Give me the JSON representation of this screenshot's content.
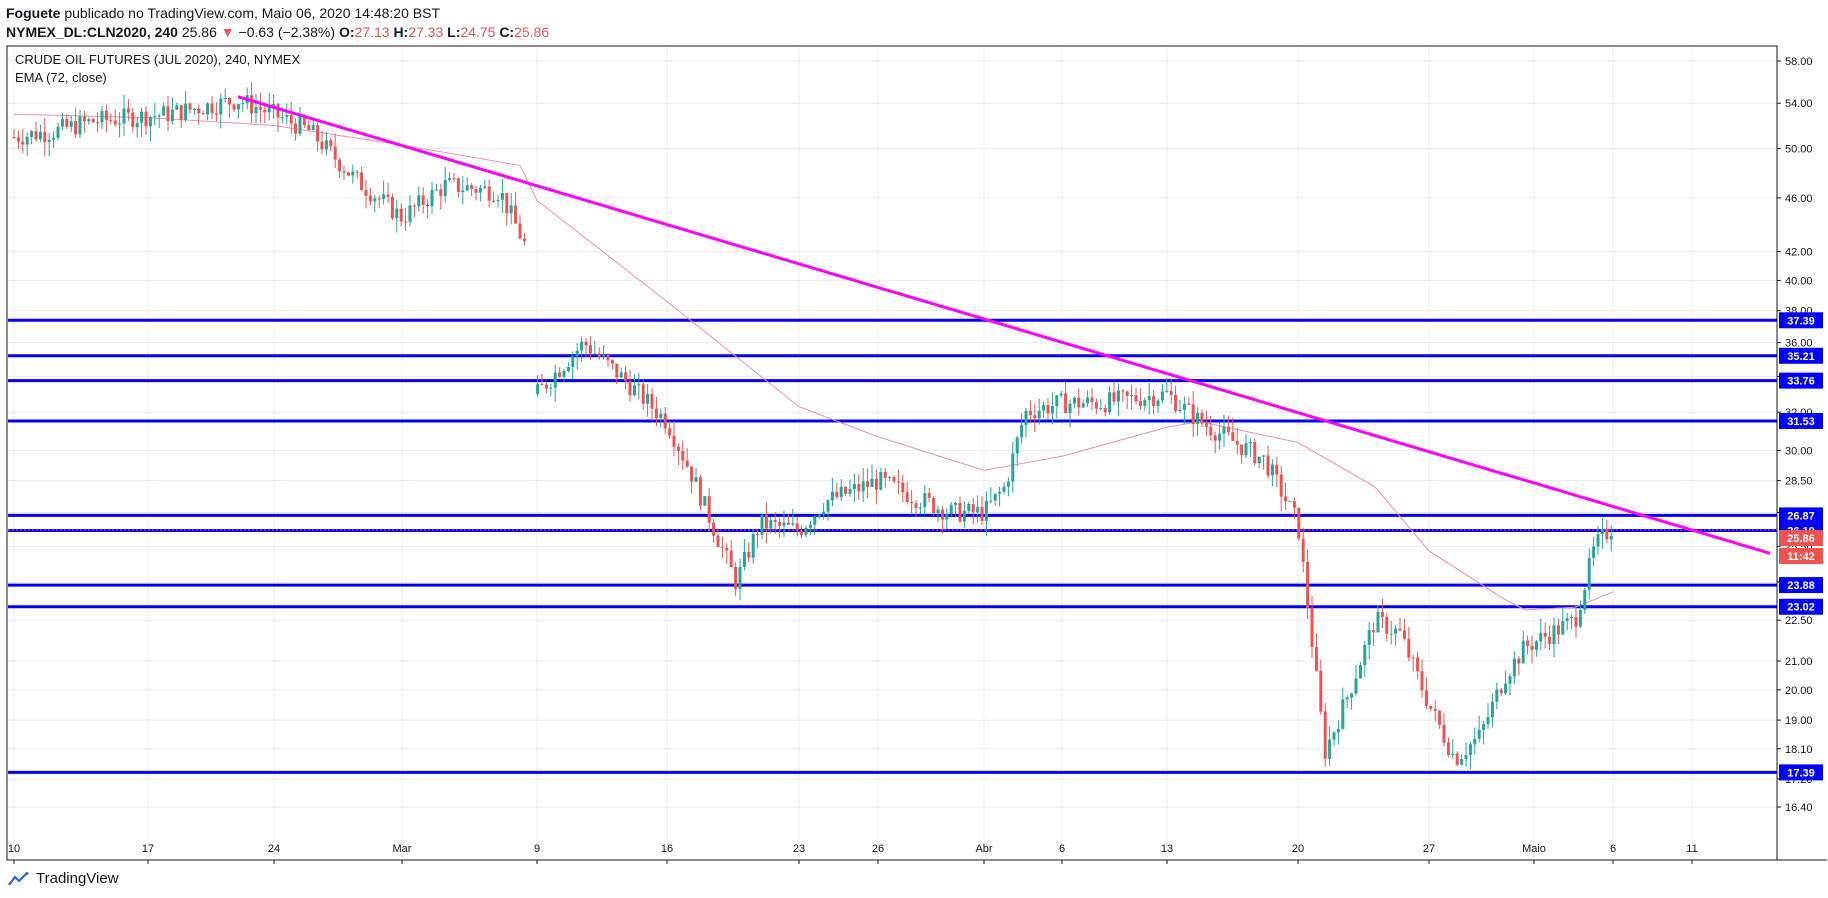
{
  "header": {
    "line1_author": "Foguete",
    "line1_rest": "publicado no TradingView.com, Maio 06, 2020 14:48:20 BST",
    "symbol": "NYMEX_DL:CLN2020, 240",
    "last": "25.86",
    "change": "−0.63 (−2.38%)",
    "o_label": "O:",
    "o_value": "27.13",
    "h_label": "H:",
    "h_value": "27.33",
    "l_label": "L:",
    "l_value": "24.75",
    "c_label": "C:",
    "c_value": "25.86"
  },
  "legend": {
    "title": "CRUDE OIL FUTURES (JUL 2020), 240, NYMEX",
    "indicator": "EMA (72, close)"
  },
  "footer": {
    "brand": "TradingView"
  },
  "colors": {
    "up": "#26a69a",
    "down": "#ef5350",
    "ema": "#f48fb1",
    "trendline": "#ff00ff",
    "level": "#0000ff",
    "grid": "#e8ecf2",
    "axis": "#131722"
  },
  "chart_data": {
    "type": "candlestick",
    "x_ticks": [
      "10",
      "17",
      "24",
      "Mar",
      "9",
      "16",
      "23",
      "26",
      "Abr",
      "6",
      "13",
      "20",
      "27",
      "Maio",
      "6",
      "11"
    ],
    "y_ticks": [
      "58.00",
      "54.00",
      "50.00",
      "46.00",
      "42.00",
      "40.00",
      "38.00",
      "36.00",
      "34.00",
      "32.00",
      "30.00",
      "28.50",
      "27.00",
      "25.50",
      "24.00",
      "22.50",
      "21.00",
      "20.00",
      "19.00",
      "18.10",
      "17.20",
      "16.40"
    ],
    "y_scale": "log",
    "y_range": [
      16.1,
      59.0
    ],
    "horizontal_levels": [
      {
        "label": "37.39",
        "value": 37.39
      },
      {
        "label": "35.21",
        "value": 35.21
      },
      {
        "label": "33.76",
        "value": 33.76
      },
      {
        "label": "31.53",
        "value": 31.53
      },
      {
        "label": "26.87",
        "value": 26.87
      },
      {
        "label": "26.19",
        "value": 26.19
      },
      {
        "label": "23.88",
        "value": 23.88
      },
      {
        "label": "23.02",
        "value": 23.02
      },
      {
        "label": "17.39",
        "value": 17.39
      }
    ],
    "last_price": {
      "label": "25.86",
      "value": 25.86
    },
    "countdown": "11:42",
    "trendline": {
      "start": {
        "x": "Fev 21",
        "y": 54.6
      },
      "end": {
        "x": "Maio 11",
        "y": 25.2
      }
    },
    "ema_anchors": [
      {
        "x": "Fev 10",
        "y": 53.0
      },
      {
        "x": "Fev 17",
        "y": 52.7
      },
      {
        "x": "Fev 24",
        "y": 52.0
      },
      {
        "x": "Mar 2",
        "y": 50.3
      },
      {
        "x": "Mar 7",
        "y": 48.6
      },
      {
        "x": "Mar 9",
        "y": 45.8
      },
      {
        "x": "Mar 16",
        "y": 38.6
      },
      {
        "x": "Mar 23",
        "y": 32.3
      },
      {
        "x": "Mar 26",
        "y": 30.7
      },
      {
        "x": "Abr 1",
        "y": 29.0
      },
      {
        "x": "Abr 6",
        "y": 29.7
      },
      {
        "x": "Abr 13",
        "y": 31.2
      },
      {
        "x": "Abr 15",
        "y": 31.5
      },
      {
        "x": "Abr 20",
        "y": 30.4
      },
      {
        "x": "Abr 23",
        "y": 28.2
      },
      {
        "x": "Abr 27",
        "y": 25.3
      },
      {
        "x": "Abr 30",
        "y": 23.3
      },
      {
        "x": "Maio 1",
        "y": 22.9
      },
      {
        "x": "Maio 4",
        "y": 23.0
      },
      {
        "x": "Maio 6",
        "y": 23.6
      }
    ],
    "price_path": [
      {
        "x": "Fev 10",
        "y": 51.0
      },
      {
        "x": "Fev 12",
        "y": 51.5
      },
      {
        "x": "Fev 14",
        "y": 52.4
      },
      {
        "x": "Fev 18",
        "y": 53.0
      },
      {
        "x": "Fev 21",
        "y": 54.3
      },
      {
        "x": "Fev 24",
        "y": 53.0
      },
      {
        "x": "Fev 26",
        "y": 51.5
      },
      {
        "x": "Fev 28",
        "y": 47.5
      },
      {
        "x": "Mar 2",
        "y": 44.5
      },
      {
        "x": "Mar 4",
        "y": 47.0
      },
      {
        "x": "Mar 6",
        "y": 46.5
      },
      {
        "x": "Mar 6b",
        "y": 42.0
      },
      {
        "x": "Mar 9",
        "y": 33.0
      },
      {
        "x": "Mar 10",
        "y": 34.5
      },
      {
        "x": "Mar 11",
        "y": 36.0
      },
      {
        "x": "Mar 13",
        "y": 33.5
      },
      {
        "x": "Mar 16",
        "y": 31.5
      },
      {
        "x": "Mar 17",
        "y": 29.0
      },
      {
        "x": "Mar 19",
        "y": 24.0
      },
      {
        "x": "Mar 20",
        "y": 26.5
      },
      {
        "x": "Mar 23",
        "y": 26.2
      },
      {
        "x": "Mar 24",
        "y": 27.5
      },
      {
        "x": "Mar 26",
        "y": 28.5
      },
      {
        "x": "Mar 30",
        "y": 27.0
      },
      {
        "x": "Abr 1",
        "y": 27.0
      },
      {
        "x": "Abr 2",
        "y": 28.2
      },
      {
        "x": "Abr 3",
        "y": 32.0
      },
      {
        "x": "Abr 6",
        "y": 32.5
      },
      {
        "x": "Abr 8",
        "y": 32.5
      },
      {
        "x": "Abr 13",
        "y": 33.0
      },
      {
        "x": "Abr 15",
        "y": 31.5
      },
      {
        "x": "Abr 17",
        "y": 29.5
      },
      {
        "x": "Abr 20",
        "y": 26.5
      },
      {
        "x": "Abr 21",
        "y": 18.0
      },
      {
        "x": "Abr 22",
        "y": 20.0
      },
      {
        "x": "Abr 23",
        "y": 22.5
      },
      {
        "x": "Abr 24",
        "y": 22.0
      },
      {
        "x": "Abr 27",
        "y": 19.5
      },
      {
        "x": "Abr 28",
        "y": 17.8
      },
      {
        "x": "Abr 29",
        "y": 18.5
      },
      {
        "x": "Abr 30",
        "y": 20.5
      },
      {
        "x": "Maio 1",
        "y": 21.5
      },
      {
        "x": "Maio 4",
        "y": 22.5
      },
      {
        "x": "Maio 5",
        "y": 25.5
      },
      {
        "x": "Maio 6",
        "y": 26.4
      }
    ]
  }
}
